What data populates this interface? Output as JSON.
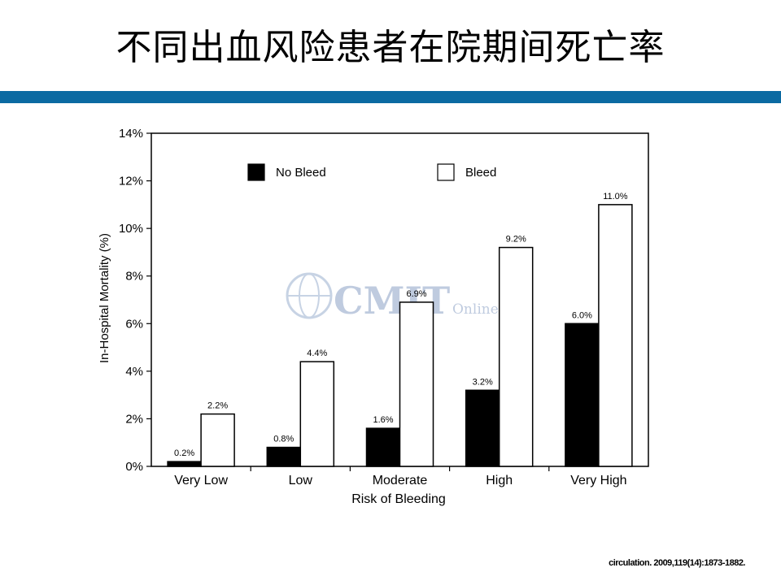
{
  "slide": {
    "title": "不同出血风险患者在院期间死亡率",
    "citation": "circulation. 2009,119(14):1873-1882.",
    "accent_color": "#0b6aa2"
  },
  "watermark": {
    "text": "CMIT",
    "subtext": "Online",
    "icon": "globe-icon"
  },
  "chart_data": {
    "type": "bar",
    "categories": [
      "Very Low",
      "Low",
      "Moderate",
      "High",
      "Very High"
    ],
    "series": [
      {
        "name": "No Bleed",
        "values": [
          0.2,
          0.8,
          1.6,
          3.2,
          6.0
        ],
        "labels": [
          "0.2%",
          "0.8%",
          "1.6%",
          "3.2%",
          "6.0%"
        ],
        "color": "#000000"
      },
      {
        "name": "Bleed",
        "values": [
          2.2,
          4.4,
          6.9,
          9.2,
          11.0
        ],
        "labels": [
          "2.2%",
          "4.4%",
          "6.9%",
          "9.2%",
          "11.0%"
        ],
        "color": "#ffffff"
      }
    ],
    "xlabel": "Risk of Bleeding",
    "ylabel": "In-Hospital Mortality (%)",
    "ylim": [
      0,
      14
    ],
    "yticks": [
      "0%",
      "2%",
      "4%",
      "6%",
      "8%",
      "10%",
      "12%",
      "14%"
    ],
    "legend_position": "top",
    "grid": false
  }
}
